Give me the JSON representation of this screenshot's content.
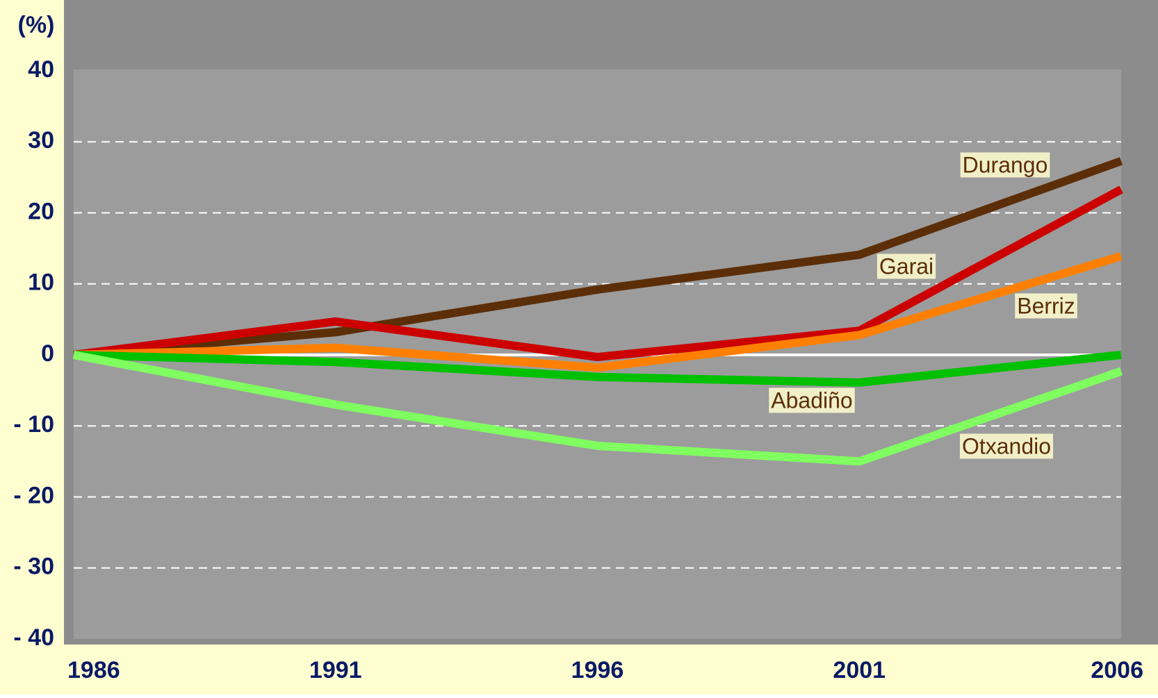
{
  "chart_data": {
    "type": "line",
    "y_label": "(%)",
    "x": [
      "1986",
      "1991",
      "1996",
      "2001",
      "2006"
    ],
    "series": [
      {
        "name": "Durango",
        "color": "#5c2e08",
        "values": [
          0,
          3.2,
          9.2,
          14.1,
          27.3
        ]
      },
      {
        "name": "Garai",
        "color": "#cc0000",
        "values": [
          0,
          4.7,
          -0.3,
          3.4,
          23.3
        ]
      },
      {
        "name": "Berriz",
        "color": "#ff8000",
        "values": [
          0,
          1,
          -1.8,
          2.8,
          13.9
        ]
      },
      {
        "name": "Abadiño",
        "color": "#00c000",
        "values": [
          0,
          -1,
          -3.1,
          -3.9,
          0
        ]
      },
      {
        "name": "Otxandio",
        "color": "#80ff60",
        "values": [
          0,
          -7,
          -12.8,
          -15,
          -2.3
        ]
      }
    ],
    "ylim": [
      -40,
      40
    ],
    "yticks": [
      {
        "value": -40,
        "label": "- 40"
      },
      {
        "value": -30,
        "label": "- 30"
      },
      {
        "value": -20,
        "label": "- 20"
      },
      {
        "value": -10,
        "label": "- 10"
      },
      0,
      10,
      20,
      30,
      40
    ],
    "grid": true
  }
}
